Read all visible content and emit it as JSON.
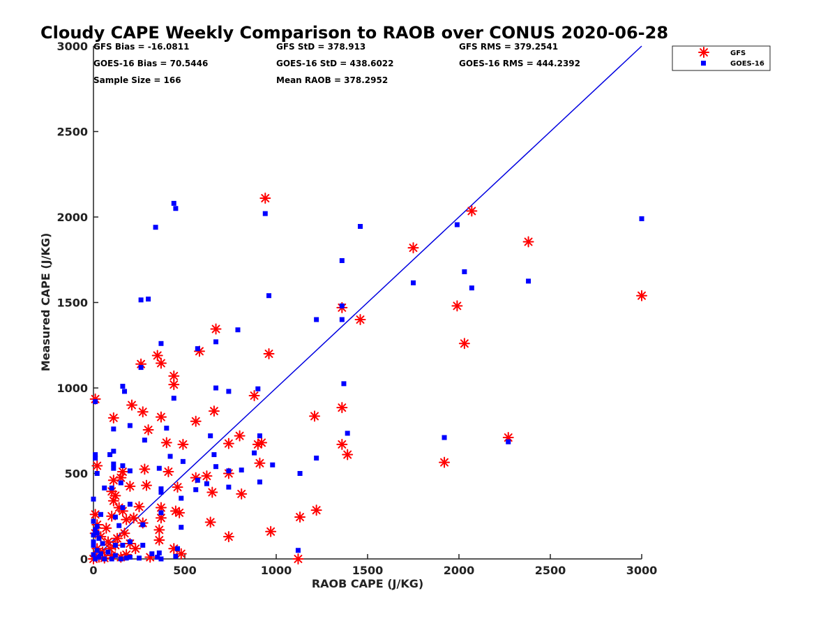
{
  "chart_data": {
    "type": "scatter",
    "title": "Cloudy CAPE Weekly Comparison to RAOB over CONUS 2020-06-28",
    "xlabel": "RAOB CAPE (J/KG)",
    "ylabel": "Measured CAPE (J/KG)",
    "xlim": [
      0,
      3000
    ],
    "ylim": [
      0,
      3000
    ],
    "xticks": [
      "0",
      "500",
      "1000",
      "1500",
      "2000",
      "2500",
      "3000"
    ],
    "yticks": [
      "0",
      "500",
      "1000",
      "1500",
      "2000",
      "2500",
      "3000"
    ],
    "grid": false,
    "legend": "top-right",
    "stats": [
      [
        "GFS Bias = -16.0811",
        "GFS StD = 378.913",
        "GFS RMS = 379.2541"
      ],
      [
        "GOES-16 Bias = 70.5446",
        "GOES-16 StD = 438.6022",
        "GOES-16 RMS = 444.2392"
      ],
      [
        "Sample Size = 166",
        "Mean RAOB = 378.2952",
        ""
      ]
    ],
    "one_to_one_line": {
      "x": [
        0,
        3000
      ],
      "y": [
        0,
        3000
      ],
      "color": "#0000e0"
    },
    "series": [
      {
        "name": "GFS",
        "marker": "asterisk",
        "color": "#ff0000",
        "points": [
          [
            940,
            2110
          ],
          [
            2070,
            2035
          ],
          [
            2380,
            1855
          ],
          [
            1750,
            1820
          ],
          [
            3000,
            1540
          ],
          [
            1990,
            1480
          ],
          [
            1360,
            1470
          ],
          [
            1460,
            1400
          ],
          [
            670,
            1345
          ],
          [
            2030,
            1260
          ],
          [
            580,
            1215
          ],
          [
            960,
            1200
          ],
          [
            350,
            1190
          ],
          [
            370,
            1145
          ],
          [
            260,
            1140
          ],
          [
            440,
            1070
          ],
          [
            440,
            1020
          ],
          [
            10,
            935
          ],
          [
            880,
            955
          ],
          [
            210,
            900
          ],
          [
            270,
            860
          ],
          [
            660,
            865
          ],
          [
            370,
            830
          ],
          [
            110,
            825
          ],
          [
            1210,
            835
          ],
          [
            1360,
            885
          ],
          [
            560,
            805
          ],
          [
            300,
            755
          ],
          [
            800,
            720
          ],
          [
            2270,
            710
          ],
          [
            400,
            680
          ],
          [
            490,
            670
          ],
          [
            740,
            675
          ],
          [
            900,
            670
          ],
          [
            920,
            680
          ],
          [
            1360,
            670
          ],
          [
            1390,
            610
          ],
          [
            1920,
            565
          ],
          [
            20,
            545
          ],
          [
            910,
            560
          ],
          [
            160,
            510
          ],
          [
            280,
            525
          ],
          [
            410,
            510
          ],
          [
            740,
            500
          ],
          [
            620,
            485
          ],
          [
            560,
            475
          ],
          [
            110,
            460
          ],
          [
            150,
            475
          ],
          [
            200,
            425
          ],
          [
            290,
            430
          ],
          [
            460,
            420
          ],
          [
            100,
            395
          ],
          [
            120,
            370
          ],
          [
            110,
            340
          ],
          [
            650,
            390
          ],
          [
            810,
            380
          ],
          [
            140,
            300
          ],
          [
            250,
            305
          ],
          [
            370,
            300
          ],
          [
            160,
            280
          ],
          [
            100,
            250
          ],
          [
            180,
            230
          ],
          [
            220,
            240
          ],
          [
            370,
            240
          ],
          [
            270,
            210
          ],
          [
            20,
            200
          ],
          [
            10,
            150
          ],
          [
            40,
            130
          ],
          [
            170,
            150
          ],
          [
            360,
            170
          ],
          [
            470,
            270
          ],
          [
            450,
            280
          ],
          [
            1220,
            285
          ],
          [
            1130,
            245
          ],
          [
            640,
            215
          ],
          [
            740,
            130
          ],
          [
            970,
            160
          ],
          [
            80,
            100
          ],
          [
            120,
            80
          ],
          [
            200,
            90
          ],
          [
            360,
            110
          ],
          [
            440,
            60
          ],
          [
            480,
            30
          ],
          [
            310,
            10
          ],
          [
            1120,
            0
          ],
          [
            10,
            260
          ],
          [
            20,
            60
          ],
          [
            50,
            40
          ],
          [
            100,
            20
          ],
          [
            150,
            10
          ],
          [
            0,
            0
          ],
          [
            30,
            10
          ],
          [
            60,
            5
          ],
          [
            180,
            25
          ],
          [
            230,
            60
          ],
          [
            130,
            120
          ],
          [
            90,
            60
          ],
          [
            70,
            180
          ]
        ]
      },
      {
        "name": "GOES-16",
        "marker": "square",
        "color": "#0000ff",
        "points": [
          [
            440,
            2080
          ],
          [
            450,
            2050
          ],
          [
            940,
            2020
          ],
          [
            3000,
            1990
          ],
          [
            1990,
            1955
          ],
          [
            1460,
            1945
          ],
          [
            340,
            1940
          ],
          [
            1360,
            1745
          ],
          [
            2030,
            1680
          ],
          [
            2380,
            1625
          ],
          [
            1750,
            1615
          ],
          [
            2070,
            1585
          ],
          [
            960,
            1540
          ],
          [
            300,
            1520
          ],
          [
            260,
            1515
          ],
          [
            1360,
            1480
          ],
          [
            1360,
            1400
          ],
          [
            1220,
            1400
          ],
          [
            790,
            1340
          ],
          [
            670,
            1270
          ],
          [
            370,
            1260
          ],
          [
            570,
            1230
          ],
          [
            260,
            1120
          ],
          [
            160,
            1010
          ],
          [
            900,
            995
          ],
          [
            170,
            980
          ],
          [
            670,
            1000
          ],
          [
            740,
            980
          ],
          [
            1370,
            1025
          ],
          [
            440,
            940
          ],
          [
            10,
            920
          ],
          [
            400,
            765
          ],
          [
            110,
            760
          ],
          [
            200,
            780
          ],
          [
            910,
            720
          ],
          [
            1390,
            735
          ],
          [
            640,
            720
          ],
          [
            280,
            695
          ],
          [
            1920,
            710
          ],
          [
            2270,
            685
          ],
          [
            110,
            630
          ],
          [
            10,
            610
          ],
          [
            10,
            590
          ],
          [
            90,
            610
          ],
          [
            420,
            600
          ],
          [
            1220,
            590
          ],
          [
            660,
            610
          ],
          [
            880,
            620
          ],
          [
            110,
            555
          ],
          [
            110,
            530
          ],
          [
            160,
            545
          ],
          [
            360,
            530
          ],
          [
            490,
            570
          ],
          [
            980,
            550
          ],
          [
            670,
            540
          ],
          [
            810,
            520
          ],
          [
            740,
            515
          ],
          [
            200,
            515
          ],
          [
            20,
            500
          ],
          [
            1130,
            500
          ],
          [
            570,
            460
          ],
          [
            620,
            440
          ],
          [
            150,
            445
          ],
          [
            60,
            415
          ],
          [
            100,
            415
          ],
          [
            370,
            410
          ],
          [
            560,
            405
          ],
          [
            370,
            390
          ],
          [
            740,
            420
          ],
          [
            910,
            450
          ],
          [
            480,
            355
          ],
          [
            0,
            350
          ],
          [
            200,
            320
          ],
          [
            160,
            300
          ],
          [
            120,
            245
          ],
          [
            40,
            260
          ],
          [
            0,
            220
          ],
          [
            270,
            200
          ],
          [
            140,
            195
          ],
          [
            20,
            190
          ],
          [
            370,
            270
          ],
          [
            480,
            185
          ],
          [
            10,
            170
          ],
          [
            20,
            150
          ],
          [
            0,
            140
          ],
          [
            30,
            120
          ],
          [
            0,
            100
          ],
          [
            50,
            90
          ],
          [
            0,
            80
          ],
          [
            160,
            80
          ],
          [
            270,
            80
          ],
          [
            120,
            80
          ],
          [
            200,
            100
          ],
          [
            360,
            35
          ],
          [
            40,
            30
          ],
          [
            0,
            25
          ],
          [
            100,
            0
          ],
          [
            180,
            5
          ],
          [
            250,
            5
          ],
          [
            320,
            30
          ],
          [
            460,
            60
          ],
          [
            450,
            15
          ],
          [
            10,
            0
          ],
          [
            60,
            0
          ],
          [
            150,
            0
          ],
          [
            1120,
            50
          ],
          [
            20,
            50
          ],
          [
            80,
            40
          ],
          [
            120,
            20
          ],
          [
            30,
            10
          ],
          [
            200,
            10
          ],
          [
            350,
            10
          ],
          [
            370,
            0
          ]
        ]
      }
    ]
  }
}
